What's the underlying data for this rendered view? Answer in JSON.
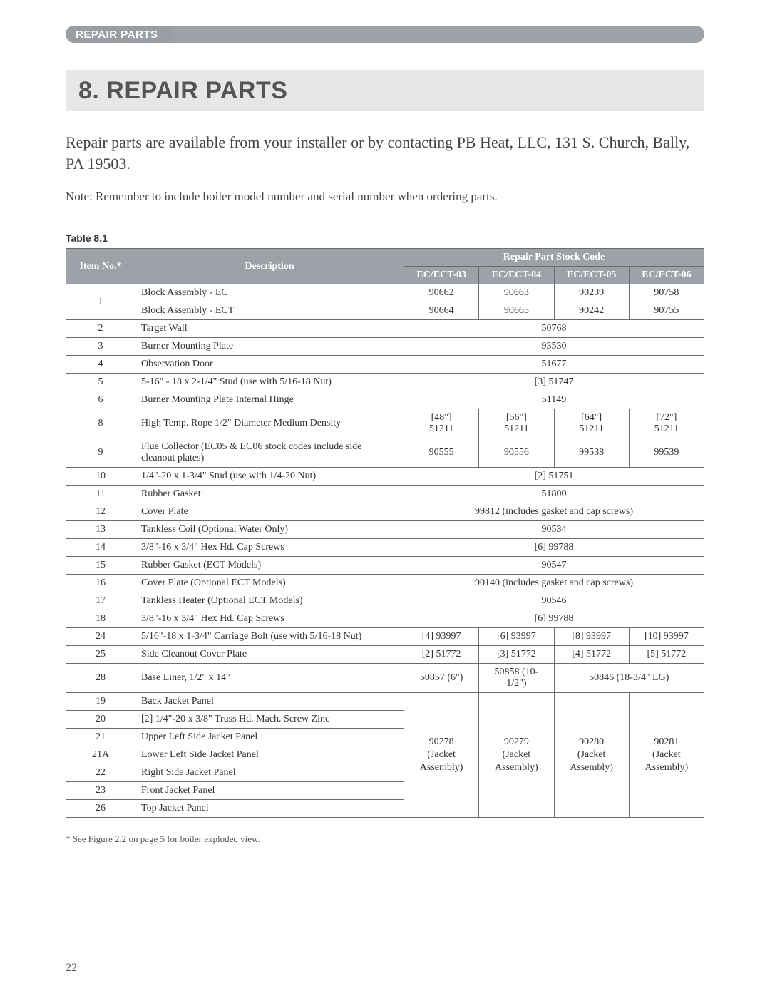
{
  "header": {
    "tab_label": "REPAIR PARTS",
    "title": "8. REPAIR PARTS",
    "intro": "Repair parts are available from your installer or by contacting PB Heat, LLC, 131 S. Church, Bally, PA 19503.",
    "note": "Note: Remember to include boiler model number and serial number when ordering parts.",
    "table_label": "Table 8.1",
    "footnote": "*  See Figure 2.2 on page 5 for boiler exploded view.",
    "page_num": "22"
  },
  "table": {
    "col_headers": {
      "item": "Item No.*",
      "desc": "Description",
      "stock_header": "Repair Part Stock Code",
      "models": [
        "EC/ECT-03",
        "EC/ECT-04",
        "EC/ECT-05",
        "EC/ECT-06"
      ]
    },
    "rows": [
      {
        "item": "1",
        "item_rowspan": 2,
        "desc": "Block Assembly - EC",
        "codes": [
          "90662",
          "90663",
          "90239",
          "90758"
        ]
      },
      {
        "desc": "Block Assembly - ECT",
        "codes": [
          "90664",
          "90665",
          "90242",
          "90755"
        ]
      },
      {
        "item": "2",
        "desc": "Target Wall",
        "codes_merged": "50768"
      },
      {
        "item": "3",
        "desc": "Burner Mounting Plate",
        "codes_merged": "93530"
      },
      {
        "item": "4",
        "desc": "Observation Door",
        "codes_merged": "51677"
      },
      {
        "item": "5",
        "desc": "5-16\" - 18 x 2-1/4\" Stud (use with 5/16-18 Nut)",
        "codes_merged": "[3] 51747"
      },
      {
        "item": "6",
        "desc": "Burner Mounting Plate Internal Hinge",
        "codes_merged": "51149"
      },
      {
        "item": "8",
        "desc": "High Temp. Rope 1/2\" Diameter Medium Density",
        "codes": [
          "[48\"]\n51211",
          "[56\"]\n51211",
          "[64\"]\n51211",
          "[72\"]\n51211"
        ]
      },
      {
        "item": "9",
        "desc": "Flue Collector (EC05 & EC06 stock codes include side cleanout plates)",
        "codes": [
          "90555",
          "90556",
          "99538",
          "99539"
        ]
      },
      {
        "item": "10",
        "desc": "1/4\"-20 x 1-3/4\" Stud (use with 1/4-20 Nut)",
        "codes_merged": "[2] 51751"
      },
      {
        "item": "11",
        "desc": "Rubber Gasket",
        "codes_merged": "51800"
      },
      {
        "item": "12",
        "desc": "Cover Plate",
        "codes_merged": "99812 (includes gasket and cap screws)"
      },
      {
        "item": "13",
        "desc": "Tankless Coil (Optional Water Only)",
        "codes_merged": "90534"
      },
      {
        "item": "14",
        "desc": "3/8\"-16 x 3/4\" Hex Hd. Cap Screws",
        "codes_merged": "[6] 99788"
      },
      {
        "item": "15",
        "desc": "Rubber Gasket (ECT Models)",
        "codes_merged": "90547"
      },
      {
        "item": "16",
        "desc": "Cover Plate (Optional ECT Models)",
        "codes_merged": "90140 (includes gasket and cap screws)"
      },
      {
        "item": "17",
        "desc": "Tankless Heater (Optional ECT Models)",
        "codes_merged": "90546"
      },
      {
        "item": "18",
        "desc": "3/8\"-16 x 3/4\" Hex Hd. Cap Screws",
        "codes_merged": "[6] 99788"
      },
      {
        "item": "24",
        "desc": "5/16\"-18 x 1-3/4\" Carriage Bolt (use with 5/16-18 Nut)",
        "codes": [
          "[4] 93997",
          "[6] 93997",
          "[8] 93997",
          "[10] 93997"
        ]
      },
      {
        "item": "25",
        "desc": "Side Cleanout Cover Plate",
        "codes": [
          "[2] 51772",
          "[3] 51772",
          "[4] 51772",
          "[5] 51772"
        ]
      },
      {
        "item": "28",
        "desc": "Base Liner, 1/2\" x 14\"",
        "codes": [
          "50857 (6\")",
          "50858 (10-1/2\")",
          {
            "span": 2,
            "text": "50846 (18-3/4\" LG)"
          }
        ]
      }
    ],
    "jacket_group": {
      "rows": [
        {
          "item": "19",
          "desc": "Back Jacket Panel"
        },
        {
          "item": "20",
          "desc": "[2] 1/4\"-20 x 3/8\" Truss Hd. Mach. Screw Zinc"
        },
        {
          "item": "21",
          "desc": "Upper Left Side Jacket Panel"
        },
        {
          "item": "21A",
          "desc": "Lower Left Side Jacket Panel"
        },
        {
          "item": "22",
          "desc": "Right Side Jacket Panel"
        },
        {
          "item": "23",
          "desc": "Front Jacket Panel"
        },
        {
          "item": "26",
          "desc": "Top Jacket Panel"
        }
      ],
      "codes": [
        "90278\n(Jacket Assembly)",
        "90279\n(Jacket Assembly)",
        "90280\n(Jacket Assembly)",
        "90281\n(Jacket Assembly)"
      ]
    }
  }
}
